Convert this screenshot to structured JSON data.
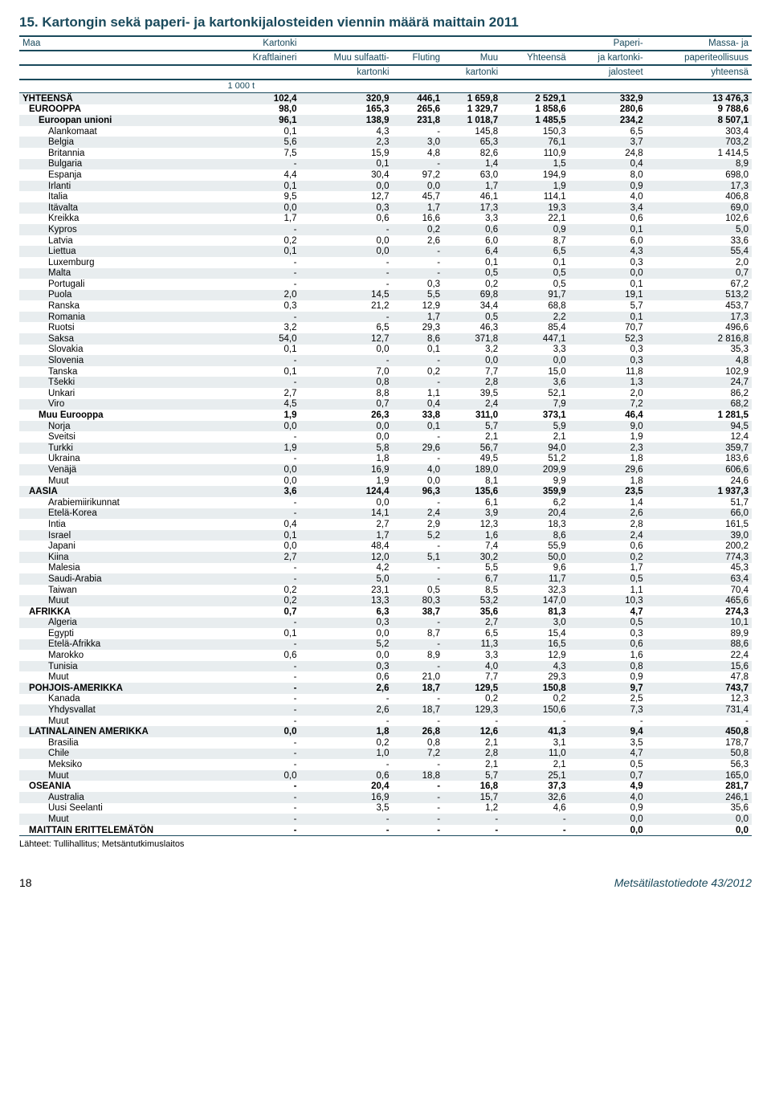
{
  "title": "15. Kartongin sekä paperi- ja kartonkijalosteiden viennin määrä maittain 2011",
  "columns": [
    {
      "line1": "Maa",
      "line2": "",
      "line3": "",
      "align": "left"
    },
    {
      "line1": "Kartonki",
      "line2": "Kraftlaineri",
      "line3": "",
      "align": "right"
    },
    {
      "line1": "",
      "line2": "Muu sulfaatti-",
      "line3": "kartonki",
      "align": "right"
    },
    {
      "line1": "",
      "line2": "Fluting",
      "line3": "",
      "align": "right"
    },
    {
      "line1": "",
      "line2": "Muu",
      "line3": "kartonki",
      "align": "right"
    },
    {
      "line1": "",
      "line2": "Yhteensä",
      "line3": "",
      "align": "right"
    },
    {
      "line1": "Paperi-",
      "line2": "ja kartonki-",
      "line3": "jalosteet",
      "align": "right"
    },
    {
      "line1": "Massa- ja",
      "line2": "paperiteollisuus",
      "line3": "yhteensä",
      "align": "right"
    }
  ],
  "unit": "1 000 t",
  "rows": [
    {
      "label": "YHTEENSÄ",
      "level": 0,
      "bold": true,
      "shade": true,
      "v": [
        "102,4",
        "320,9",
        "446,1",
        "1 659,8",
        "2 529,1",
        "332,9",
        "13 476,3"
      ]
    },
    {
      "label": "EUROOPPA",
      "level": 1,
      "bold": true,
      "shade": false,
      "v": [
        "98,0",
        "165,3",
        "265,6",
        "1 329,7",
        "1 858,6",
        "280,6",
        "9 788,6"
      ]
    },
    {
      "label": "Euroopan unioni",
      "level": 2,
      "bold": true,
      "shade": true,
      "v": [
        "96,1",
        "138,9",
        "231,8",
        "1 018,7",
        "1 485,5",
        "234,2",
        "8 507,1"
      ]
    },
    {
      "label": "Alankomaat",
      "level": 3,
      "shade": false,
      "v": [
        "0,1",
        "4,3",
        "-",
        "145,8",
        "150,3",
        "6,5",
        "303,4"
      ]
    },
    {
      "label": "Belgia",
      "level": 3,
      "shade": true,
      "v": [
        "5,6",
        "2,3",
        "3,0",
        "65,3",
        "76,1",
        "3,7",
        "703,2"
      ]
    },
    {
      "label": "Britannia",
      "level": 3,
      "shade": false,
      "v": [
        "7,5",
        "15,9",
        "4,8",
        "82,6",
        "110,9",
        "24,8",
        "1 414,5"
      ]
    },
    {
      "label": "Bulgaria",
      "level": 3,
      "shade": true,
      "v": [
        "-",
        "0,1",
        "-",
        "1,4",
        "1,5",
        "0,4",
        "8,9"
      ]
    },
    {
      "label": "Espanja",
      "level": 3,
      "shade": false,
      "v": [
        "4,4",
        "30,4",
        "97,2",
        "63,0",
        "194,9",
        "8,0",
        "698,0"
      ]
    },
    {
      "label": "Irlanti",
      "level": 3,
      "shade": true,
      "v": [
        "0,1",
        "0,0",
        "0,0",
        "1,7",
        "1,9",
        "0,9",
        "17,3"
      ]
    },
    {
      "label": "Italia",
      "level": 3,
      "shade": false,
      "v": [
        "9,5",
        "12,7",
        "45,7",
        "46,1",
        "114,1",
        "4,0",
        "406,8"
      ]
    },
    {
      "label": "Itävalta",
      "level": 3,
      "shade": true,
      "v": [
        "0,0",
        "0,3",
        "1,7",
        "17,3",
        "19,3",
        "3,4",
        "69,0"
      ]
    },
    {
      "label": "Kreikka",
      "level": 3,
      "shade": false,
      "v": [
        "1,7",
        "0,6",
        "16,6",
        "3,3",
        "22,1",
        "0,6",
        "102,6"
      ]
    },
    {
      "label": "Kypros",
      "level": 3,
      "shade": true,
      "v": [
        "-",
        "-",
        "0,2",
        "0,6",
        "0,9",
        "0,1",
        "5,0"
      ]
    },
    {
      "label": "Latvia",
      "level": 3,
      "shade": false,
      "v": [
        "0,2",
        "0,0",
        "2,6",
        "6,0",
        "8,7",
        "6,0",
        "33,6"
      ]
    },
    {
      "label": "Liettua",
      "level": 3,
      "shade": true,
      "v": [
        "0,1",
        "0,0",
        "-",
        "6,4",
        "6,5",
        "4,3",
        "55,4"
      ]
    },
    {
      "label": "Luxemburg",
      "level": 3,
      "shade": false,
      "v": [
        "-",
        "-",
        "-",
        "0,1",
        "0,1",
        "0,3",
        "2,0"
      ]
    },
    {
      "label": "Malta",
      "level": 3,
      "shade": true,
      "v": [
        "-",
        "-",
        "-",
        "0,5",
        "0,5",
        "0,0",
        "0,7"
      ]
    },
    {
      "label": "Portugali",
      "level": 3,
      "shade": false,
      "v": [
        "-",
        "-",
        "0,3",
        "0,2",
        "0,5",
        "0,1",
        "67,2"
      ]
    },
    {
      "label": "Puola",
      "level": 3,
      "shade": true,
      "v": [
        "2,0",
        "14,5",
        "5,5",
        "69,8",
        "91,7",
        "19,1",
        "513,2"
      ]
    },
    {
      "label": "Ranska",
      "level": 3,
      "shade": false,
      "v": [
        "0,3",
        "21,2",
        "12,9",
        "34,4",
        "68,8",
        "5,7",
        "453,7"
      ]
    },
    {
      "label": "Romania",
      "level": 3,
      "shade": true,
      "v": [
        "-",
        "-",
        "1,7",
        "0,5",
        "2,2",
        "0,1",
        "17,3"
      ]
    },
    {
      "label": "Ruotsi",
      "level": 3,
      "shade": false,
      "v": [
        "3,2",
        "6,5",
        "29,3",
        "46,3",
        "85,4",
        "70,7",
        "496,6"
      ]
    },
    {
      "label": "Saksa",
      "level": 3,
      "shade": true,
      "v": [
        "54,0",
        "12,7",
        "8,6",
        "371,8",
        "447,1",
        "52,3",
        "2 816,8"
      ]
    },
    {
      "label": "Slovakia",
      "level": 3,
      "shade": false,
      "v": [
        "0,1",
        "0,0",
        "0,1",
        "3,2",
        "3,3",
        "0,3",
        "35,3"
      ]
    },
    {
      "label": "Slovenia",
      "level": 3,
      "shade": true,
      "v": [
        "-",
        "-",
        "-",
        "0,0",
        "0,0",
        "0,3",
        "4,8"
      ]
    },
    {
      "label": "Tanska",
      "level": 3,
      "shade": false,
      "v": [
        "0,1",
        "7,0",
        "0,2",
        "7,7",
        "15,0",
        "11,8",
        "102,9"
      ]
    },
    {
      "label": "Tšekki",
      "level": 3,
      "shade": true,
      "v": [
        "-",
        "0,8",
        "-",
        "2,8",
        "3,6",
        "1,3",
        "24,7"
      ]
    },
    {
      "label": "Unkari",
      "level": 3,
      "shade": false,
      "v": [
        "2,7",
        "8,8",
        "1,1",
        "39,5",
        "52,1",
        "2,0",
        "86,2"
      ]
    },
    {
      "label": "Viro",
      "level": 3,
      "shade": true,
      "v": [
        "4,5",
        "0,7",
        "0,4",
        "2,4",
        "7,9",
        "7,2",
        "68,2"
      ]
    },
    {
      "label": "Muu Eurooppa",
      "level": 2,
      "bold": true,
      "shade": false,
      "v": [
        "1,9",
        "26,3",
        "33,8",
        "311,0",
        "373,1",
        "46,4",
        "1 281,5"
      ]
    },
    {
      "label": "Norja",
      "level": 3,
      "shade": true,
      "v": [
        "0,0",
        "0,0",
        "0,1",
        "5,7",
        "5,9",
        "9,0",
        "94,5"
      ]
    },
    {
      "label": "Sveitsi",
      "level": 3,
      "shade": false,
      "v": [
        "-",
        "0,0",
        "-",
        "2,1",
        "2,1",
        "1,9",
        "12,4"
      ]
    },
    {
      "label": "Turkki",
      "level": 3,
      "shade": true,
      "v": [
        "1,9",
        "5,8",
        "29,6",
        "56,7",
        "94,0",
        "2,3",
        "359,7"
      ]
    },
    {
      "label": "Ukraina",
      "level": 3,
      "shade": false,
      "v": [
        "-",
        "1,8",
        "-",
        "49,5",
        "51,2",
        "1,8",
        "183,6"
      ]
    },
    {
      "label": "Venäjä",
      "level": 3,
      "shade": true,
      "v": [
        "0,0",
        "16,9",
        "4,0",
        "189,0",
        "209,9",
        "29,6",
        "606,6"
      ]
    },
    {
      "label": "Muut",
      "level": 3,
      "shade": false,
      "v": [
        "0,0",
        "1,9",
        "0,0",
        "8,1",
        "9,9",
        "1,8",
        "24,6"
      ]
    },
    {
      "label": "AASIA",
      "level": 1,
      "bold": true,
      "shade": true,
      "v": [
        "3,6",
        "124,4",
        "96,3",
        "135,6",
        "359,9",
        "23,5",
        "1 937,3"
      ]
    },
    {
      "label": "Arabiemiirikunnat",
      "level": 3,
      "shade": false,
      "v": [
        "-",
        "0,0",
        "-",
        "6,1",
        "6,2",
        "1,4",
        "51,7"
      ]
    },
    {
      "label": "Etelä-Korea",
      "level": 3,
      "shade": true,
      "v": [
        "-",
        "14,1",
        "2,4",
        "3,9",
        "20,4",
        "2,6",
        "66,0"
      ]
    },
    {
      "label": "Intia",
      "level": 3,
      "shade": false,
      "v": [
        "0,4",
        "2,7",
        "2,9",
        "12,3",
        "18,3",
        "2,8",
        "161,5"
      ]
    },
    {
      "label": "Israel",
      "level": 3,
      "shade": true,
      "v": [
        "0,1",
        "1,7",
        "5,2",
        "1,6",
        "8,6",
        "2,4",
        "39,0"
      ]
    },
    {
      "label": "Japani",
      "level": 3,
      "shade": false,
      "v": [
        "0,0",
        "48,4",
        "-",
        "7,4",
        "55,9",
        "0,6",
        "200,2"
      ]
    },
    {
      "label": "Kiina",
      "level": 3,
      "shade": true,
      "v": [
        "2,7",
        "12,0",
        "5,1",
        "30,2",
        "50,0",
        "0,2",
        "774,3"
      ]
    },
    {
      "label": "Malesia",
      "level": 3,
      "shade": false,
      "v": [
        "-",
        "4,2",
        "-",
        "5,5",
        "9,6",
        "1,7",
        "45,3"
      ]
    },
    {
      "label": "Saudi-Arabia",
      "level": 3,
      "shade": true,
      "v": [
        "-",
        "5,0",
        "-",
        "6,7",
        "11,7",
        "0,5",
        "63,4"
      ]
    },
    {
      "label": "Taiwan",
      "level": 3,
      "shade": false,
      "v": [
        "0,2",
        "23,1",
        "0,5",
        "8,5",
        "32,3",
        "1,1",
        "70,4"
      ]
    },
    {
      "label": "Muut",
      "level": 3,
      "shade": true,
      "v": [
        "0,2",
        "13,3",
        "80,3",
        "53,2",
        "147,0",
        "10,3",
        "465,6"
      ]
    },
    {
      "label": "AFRIKKA",
      "level": 1,
      "bold": true,
      "shade": false,
      "v": [
        "0,7",
        "6,3",
        "38,7",
        "35,6",
        "81,3",
        "4,7",
        "274,3"
      ]
    },
    {
      "label": "Algeria",
      "level": 3,
      "shade": true,
      "v": [
        "-",
        "0,3",
        "-",
        "2,7",
        "3,0",
        "0,5",
        "10,1"
      ]
    },
    {
      "label": "Egypti",
      "level": 3,
      "shade": false,
      "v": [
        "0,1",
        "0,0",
        "8,7",
        "6,5",
        "15,4",
        "0,3",
        "89,9"
      ]
    },
    {
      "label": "Etelä-Afrikka",
      "level": 3,
      "shade": true,
      "v": [
        "-",
        "5,2",
        "-",
        "11,3",
        "16,5",
        "0,6",
        "88,6"
      ]
    },
    {
      "label": "Marokko",
      "level": 3,
      "shade": false,
      "v": [
        "0,6",
        "0,0",
        "8,9",
        "3,3",
        "12,9",
        "1,6",
        "22,4"
      ]
    },
    {
      "label": "Tunisia",
      "level": 3,
      "shade": true,
      "v": [
        "-",
        "0,3",
        "-",
        "4,0",
        "4,3",
        "0,8",
        "15,6"
      ]
    },
    {
      "label": "Muut",
      "level": 3,
      "shade": false,
      "v": [
        "-",
        "0,6",
        "21,0",
        "7,7",
        "29,3",
        "0,9",
        "47,8"
      ]
    },
    {
      "label": "POHJOIS-AMERIKKA",
      "level": 1,
      "bold": true,
      "shade": true,
      "v": [
        "-",
        "2,6",
        "18,7",
        "129,5",
        "150,8",
        "9,7",
        "743,7"
      ]
    },
    {
      "label": "Kanada",
      "level": 3,
      "shade": false,
      "v": [
        "-",
        "-",
        "-",
        "0,2",
        "0,2",
        "2,5",
        "12,3"
      ]
    },
    {
      "label": "Yhdysvallat",
      "level": 3,
      "shade": true,
      "v": [
        "-",
        "2,6",
        "18,7",
        "129,3",
        "150,6",
        "7,3",
        "731,4"
      ]
    },
    {
      "label": "Muut",
      "level": 3,
      "shade": false,
      "v": [
        "-",
        "-",
        "-",
        "-",
        "-",
        "-",
        "-"
      ]
    },
    {
      "label": "LATINALAINEN AMERIKKA",
      "level": 1,
      "bold": true,
      "shade": true,
      "v": [
        "0,0",
        "1,8",
        "26,8",
        "12,6",
        "41,3",
        "9,4",
        "450,8"
      ]
    },
    {
      "label": "Brasilia",
      "level": 3,
      "shade": false,
      "v": [
        "-",
        "0,2",
        "0,8",
        "2,1",
        "3,1",
        "3,5",
        "178,7"
      ]
    },
    {
      "label": "Chile",
      "level": 3,
      "shade": true,
      "v": [
        "-",
        "1,0",
        "7,2",
        "2,8",
        "11,0",
        "4,7",
        "50,8"
      ]
    },
    {
      "label": "Meksiko",
      "level": 3,
      "shade": false,
      "v": [
        "-",
        "-",
        "-",
        "2,1",
        "2,1",
        "0,5",
        "56,3"
      ]
    },
    {
      "label": "Muut",
      "level": 3,
      "shade": true,
      "v": [
        "0,0",
        "0,6",
        "18,8",
        "5,7",
        "25,1",
        "0,7",
        "165,0"
      ]
    },
    {
      "label": "OSEANIA",
      "level": 1,
      "bold": true,
      "shade": false,
      "v": [
        "-",
        "20,4",
        "-",
        "16,8",
        "37,3",
        "4,9",
        "281,7"
      ]
    },
    {
      "label": "Australia",
      "level": 3,
      "shade": true,
      "v": [
        "-",
        "16,9",
        "-",
        "15,7",
        "32,6",
        "4,0",
        "246,1"
      ]
    },
    {
      "label": "Uusi Seelanti",
      "level": 3,
      "shade": false,
      "v": [
        "-",
        "3,5",
        "-",
        "1,2",
        "4,6",
        "0,9",
        "35,6"
      ]
    },
    {
      "label": "Muut",
      "level": 3,
      "shade": true,
      "v": [
        "-",
        "-",
        "-",
        "-",
        "-",
        "0,0",
        "0,0"
      ]
    },
    {
      "label": "MAITTAIN ERITTELEMÄTÖN",
      "level": 1,
      "bold": true,
      "shade": false,
      "v": [
        "-",
        "-",
        "-",
        "-",
        "-",
        "0,0",
        "0,0"
      ],
      "bottom": true
    }
  ],
  "source": "Lähteet: Tullihallitus; Metsäntutkimuslaitos",
  "page_number": "18",
  "publication": "Metsätilastotiedote 43/2012",
  "colors": {
    "brand": "#1a4a5c",
    "shade": "#e8edef"
  }
}
